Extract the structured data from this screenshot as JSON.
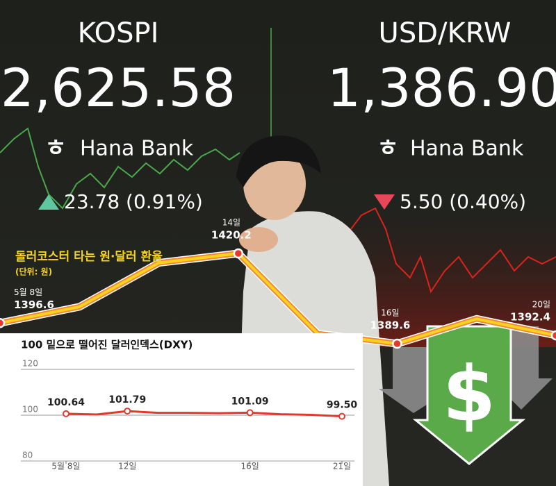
{
  "board": {
    "left": {
      "name": "KOSPI",
      "value": "2,625.58",
      "brand": "Hana Bank",
      "change": "23.78 (0.91%)"
    },
    "right": {
      "name": "USD/KRW",
      "value": "1,386.90",
      "brand": "Hana Bank",
      "change": "5.50 (0.40%)"
    }
  },
  "graphic": {
    "symbol": "$"
  },
  "chart_data": [
    {
      "type": "line",
      "title": "돌러코스터 타는 원·달러 환율",
      "subtitle": "(단위: 원)",
      "categories": [
        "5월 8일",
        null,
        null,
        "14일",
        null,
        "16일",
        null,
        "20일"
      ],
      "values": [
        1396.6,
        1402.1,
        1417.0,
        1420.2,
        1393.0,
        1389.6,
        1398.0,
        1392.4
      ],
      "color": "#f7d21e"
    },
    {
      "type": "line",
      "title": "100 밑으로 떨어진 달러인덱스(DXY)",
      "categories": [
        "5월 8일",
        null,
        "12일",
        null,
        null,
        null,
        "16일",
        null,
        null,
        "21일"
      ],
      "values": [
        100.64,
        100.31,
        101.79,
        101.03,
        101.03,
        100.88,
        101.09,
        100.43,
        100.16,
        99.5
      ],
      "value_labels": [
        "100.64",
        null,
        "101.79",
        null,
        null,
        null,
        "101.09",
        null,
        null,
        "99.50"
      ],
      "color": "#e03a2f",
      "ylim": [
        80,
        120
      ],
      "yticks": [
        80,
        100,
        120
      ],
      "grid": true
    }
  ]
}
